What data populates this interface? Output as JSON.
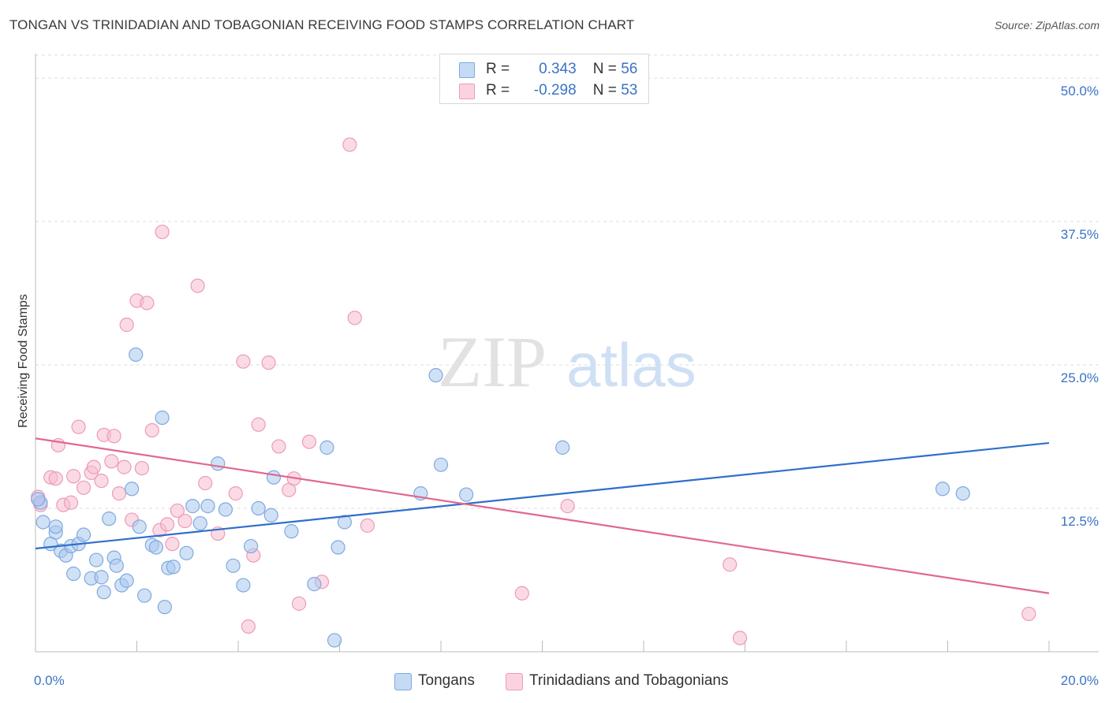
{
  "header": {
    "title": "TONGAN VS TRINIDADIAN AND TOBAGONIAN RECEIVING FOOD STAMPS CORRELATION CHART",
    "source": "Source: ZipAtlas.com"
  },
  "watermark": {
    "zip": "ZIP",
    "atlas": "atlas"
  },
  "legend": {
    "rows": [
      {
        "r_label": "R =",
        "r_value": "0.343",
        "n_label": "N =",
        "n_value": "56"
      },
      {
        "r_label": "R =",
        "r_value": "-0.298",
        "n_label": "N =",
        "n_value": "53"
      }
    ]
  },
  "colors": {
    "tongans_fill": "#aac8ee",
    "tongans_stroke": "#7fa9e0",
    "tongans_line": "#2f6ecb",
    "trini_fill": "#f6bdd0",
    "trini_stroke": "#ee9ab7",
    "trini_line": "#e0688f",
    "axis_label": "#3a73c6",
    "grid": "#dddddd"
  },
  "chart_data": {
    "type": "scatter",
    "title": "TONGAN VS TRINIDADIAN AND TOBAGONIAN RECEIVING FOOD STAMPS CORRELATION CHART",
    "xlabel": "",
    "ylabel": "Receiving Food Stamps",
    "xlim": [
      0,
      20
    ],
    "ylim": [
      0,
      52
    ],
    "x_tick_labels": [
      "0.0%",
      "20.0%"
    ],
    "y_ticks": [
      12.5,
      25.0,
      37.5,
      50.0
    ],
    "y_tick_labels": [
      "12.5%",
      "25.0%",
      "37.5%",
      "50.0%"
    ],
    "grid": "horizontal dashed",
    "legend_position": "top-center",
    "series": [
      {
        "name": "Tongans",
        "trend": {
          "x": [
            0,
            20
          ],
          "y": [
            9.0,
            18.2
          ]
        },
        "points": [
          [
            0.1,
            13.0
          ],
          [
            0.15,
            11.3
          ],
          [
            0.3,
            9.4
          ],
          [
            0.4,
            10.4
          ],
          [
            0.4,
            10.9
          ],
          [
            0.5,
            8.8
          ],
          [
            0.6,
            8.4
          ],
          [
            0.7,
            9.2
          ],
          [
            0.75,
            6.8
          ],
          [
            0.85,
            9.4
          ],
          [
            0.95,
            10.2
          ],
          [
            1.1,
            6.4
          ],
          [
            1.2,
            8.0
          ],
          [
            1.3,
            6.5
          ],
          [
            1.35,
            5.2
          ],
          [
            1.45,
            11.6
          ],
          [
            1.55,
            8.2
          ],
          [
            1.6,
            7.5
          ],
          [
            1.7,
            5.8
          ],
          [
            1.8,
            6.2
          ],
          [
            1.9,
            14.2
          ],
          [
            1.98,
            25.9
          ],
          [
            2.05,
            10.9
          ],
          [
            2.15,
            4.9
          ],
          [
            2.3,
            9.3
          ],
          [
            2.38,
            9.1
          ],
          [
            2.5,
            20.4
          ],
          [
            2.55,
            3.9
          ],
          [
            2.62,
            7.3
          ],
          [
            2.72,
            7.4
          ],
          [
            2.98,
            8.6
          ],
          [
            3.1,
            12.7
          ],
          [
            3.25,
            11.2
          ],
          [
            3.4,
            12.7
          ],
          [
            3.6,
            16.4
          ],
          [
            3.75,
            12.4
          ],
          [
            3.9,
            7.5
          ],
          [
            4.1,
            5.8
          ],
          [
            4.25,
            9.2
          ],
          [
            4.4,
            12.5
          ],
          [
            4.65,
            11.9
          ],
          [
            4.7,
            15.2
          ],
          [
            5.05,
            10.5
          ],
          [
            5.5,
            5.9
          ],
          [
            5.75,
            17.8
          ],
          [
            5.9,
            1.0
          ],
          [
            5.97,
            9.1
          ],
          [
            6.1,
            11.3
          ],
          [
            7.6,
            13.8
          ],
          [
            7.9,
            24.1
          ],
          [
            8.0,
            16.3
          ],
          [
            8.5,
            13.7
          ],
          [
            10.4,
            17.8
          ],
          [
            17.9,
            14.2
          ],
          [
            18.3,
            13.8
          ],
          [
            0.05,
            13.3
          ]
        ]
      },
      {
        "name": "Trinidadians and Tobagonians",
        "trend": {
          "x": [
            0,
            20
          ],
          "y": [
            18.6,
            5.1
          ]
        },
        "points": [
          [
            0.05,
            13.5
          ],
          [
            0.1,
            12.8
          ],
          [
            0.3,
            15.2
          ],
          [
            0.4,
            15.1
          ],
          [
            0.45,
            18.0
          ],
          [
            0.55,
            12.8
          ],
          [
            0.7,
            13.0
          ],
          [
            0.75,
            15.3
          ],
          [
            0.85,
            19.6
          ],
          [
            0.95,
            14.3
          ],
          [
            1.1,
            15.6
          ],
          [
            1.15,
            16.1
          ],
          [
            1.3,
            14.9
          ],
          [
            1.35,
            18.9
          ],
          [
            1.5,
            16.6
          ],
          [
            1.55,
            18.8
          ],
          [
            1.65,
            13.8
          ],
          [
            1.75,
            16.1
          ],
          [
            1.8,
            28.5
          ],
          [
            1.9,
            11.5
          ],
          [
            2.0,
            30.6
          ],
          [
            2.1,
            16.0
          ],
          [
            2.2,
            30.4
          ],
          [
            2.3,
            19.3
          ],
          [
            2.45,
            10.6
          ],
          [
            2.5,
            36.6
          ],
          [
            2.6,
            11.1
          ],
          [
            2.7,
            9.4
          ],
          [
            2.8,
            12.3
          ],
          [
            2.95,
            11.4
          ],
          [
            3.2,
            31.9
          ],
          [
            3.35,
            14.7
          ],
          [
            3.6,
            10.3
          ],
          [
            3.95,
            13.8
          ],
          [
            4.1,
            25.3
          ],
          [
            4.2,
            2.2
          ],
          [
            4.3,
            8.4
          ],
          [
            4.4,
            19.8
          ],
          [
            4.6,
            25.2
          ],
          [
            4.8,
            17.9
          ],
          [
            5.0,
            14.1
          ],
          [
            5.1,
            15.1
          ],
          [
            5.2,
            4.2
          ],
          [
            5.4,
            18.3
          ],
          [
            5.65,
            6.1
          ],
          [
            6.2,
            44.2
          ],
          [
            6.3,
            29.1
          ],
          [
            6.55,
            11.0
          ],
          [
            9.6,
            5.1
          ],
          [
            10.5,
            12.7
          ],
          [
            13.7,
            7.6
          ],
          [
            13.9,
            1.2
          ],
          [
            19.6,
            3.3
          ]
        ]
      }
    ]
  },
  "bottom_legend": {
    "items": [
      {
        "label": "Tongans"
      },
      {
        "label": "Trinidadians and Tobagonians"
      }
    ]
  }
}
